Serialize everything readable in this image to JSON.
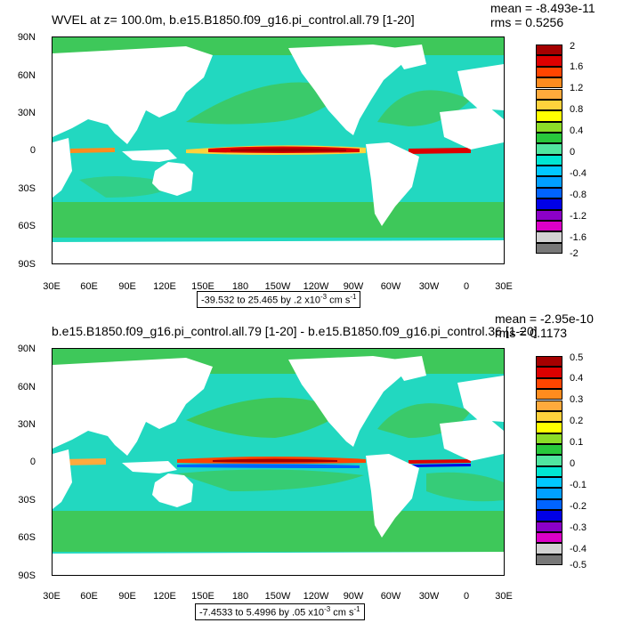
{
  "panels": [
    {
      "title": "WVEL at z= 100.0m, b.e15.B1850.f09_g16.pi_control.all.79 [1-20]",
      "mean_text": "mean = -8.493e-11",
      "rms_text": "rms = 0.5256",
      "range_prefix": "-39.532 to 25.465 by .2 x10",
      "range_exp": "-3",
      "range_suffix": " cm s",
      "range_unit_exp": "-1",
      "colorbar_labels": [
        "2",
        "1.6",
        "1.2",
        "0.8",
        "0.4",
        "0",
        "-0.4",
        "-0.8",
        "-1.2",
        "-1.6",
        "-2"
      ]
    },
    {
      "title": "b.e15.B1850.f09_g16.pi_control.all.79 [1-20] - b.e15.B1850.f09_g16.pi_control.36 [1-20]",
      "mean_text": "mean = -2.95e-10",
      "rms_text": "rms = 0.1173",
      "range_prefix": "-7.4533 to 5.4996 by .05 x10",
      "range_exp": "-3",
      "range_suffix": " cm s",
      "range_unit_exp": "-1",
      "colorbar_labels": [
        "0.5",
        "0.4",
        "0.3",
        "0.2",
        "0.1",
        "0",
        "-0.1",
        "-0.2",
        "-0.3",
        "-0.4",
        "-0.5"
      ]
    }
  ],
  "lat_labels": [
    "90N",
    "60N",
    "30N",
    "0",
    "30S",
    "60S",
    "90S"
  ],
  "lon_labels": [
    "30E",
    "60E",
    "90E",
    "120E",
    "150E",
    "180",
    "150W",
    "120W",
    "90W",
    "60W",
    "30W",
    "0",
    "30E"
  ],
  "colormap": [
    "#a50000",
    "#dd0000",
    "#ff4500",
    "#ff8c1e",
    "#ffaa3c",
    "#ffd23c",
    "#ffff00",
    "#8cdc28",
    "#28c83c",
    "#50e6a0",
    "#00e6d2",
    "#00c8ff",
    "#00a0ff",
    "#0064ff",
    "#0000e6",
    "#8c00c8",
    "#dc00c8",
    "#d2d2d2",
    "#787878"
  ],
  "colors": {
    "ocean_main": "#22d8c0",
    "ocean_band": "#3ec85a",
    "land": "#ffffff"
  }
}
